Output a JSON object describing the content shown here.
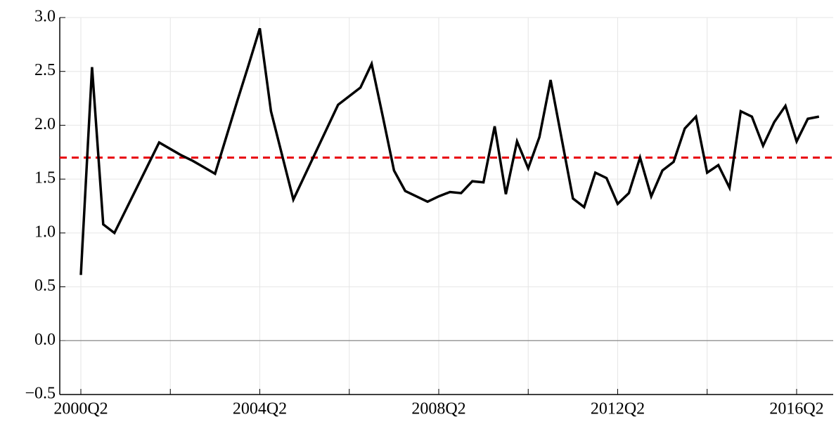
{
  "chart_data": {
    "type": "line",
    "categories": [
      "2000Q2",
      null,
      null,
      null,
      null,
      null,
      null,
      null,
      null,
      null,
      null,
      null,
      null,
      null,
      null,
      null,
      "2004Q2",
      null,
      null,
      null,
      null,
      null,
      null,
      null,
      null,
      null,
      null,
      null,
      null,
      null,
      null,
      null,
      "2008Q2",
      null,
      null,
      null,
      null,
      null,
      null,
      null,
      null,
      null,
      null,
      null,
      null,
      null,
      null,
      null,
      "2012Q2",
      null,
      null,
      null,
      null,
      null,
      null,
      null,
      null,
      null,
      null,
      null,
      null,
      null,
      null,
      null,
      "2016Q2",
      null,
      null
    ],
    "series": [
      {
        "color": "#000000",
        "values": [
          0.61,
          2.54,
          1.08,
          1.0,
          1.21,
          1.42,
          1.63,
          1.84,
          1.78,
          1.72,
          1.67,
          1.61,
          1.55,
          1.89,
          2.23,
          2.56,
          2.9,
          2.13,
          1.72,
          1.31,
          1.53,
          1.75,
          1.97,
          2.19,
          2.27,
          2.35,
          2.57,
          2.08,
          1.58,
          1.39,
          1.34,
          1.29,
          1.34,
          1.38,
          1.37,
          1.48,
          1.47,
          1.99,
          1.36,
          1.85,
          1.6,
          1.89,
          2.42,
          1.87,
          1.32,
          1.24,
          1.56,
          1.51,
          1.27,
          1.37,
          1.7,
          1.34,
          1.58,
          1.66,
          1.97,
          2.08,
          1.56,
          1.63,
          1.42,
          2.13,
          2.08,
          1.81,
          2.03,
          2.18,
          1.85,
          2.06,
          2.08
        ]
      }
    ],
    "mean_line": {
      "value": 1.7,
      "color": "#e8000b"
    },
    "zero_line": true,
    "ylim": [
      -0.5,
      3.0
    ],
    "yticks": [
      {
        "value": -0.5,
        "label": "−0.5"
      },
      {
        "value": 0,
        "label": "0.0"
      },
      0.5,
      {
        "value": 1,
        "label": "1.0"
      },
      1.5,
      {
        "value": 2,
        "label": "2.0"
      },
      2.5,
      {
        "value": 3,
        "label": "3.0"
      }
    ],
    "grid": true
  }
}
